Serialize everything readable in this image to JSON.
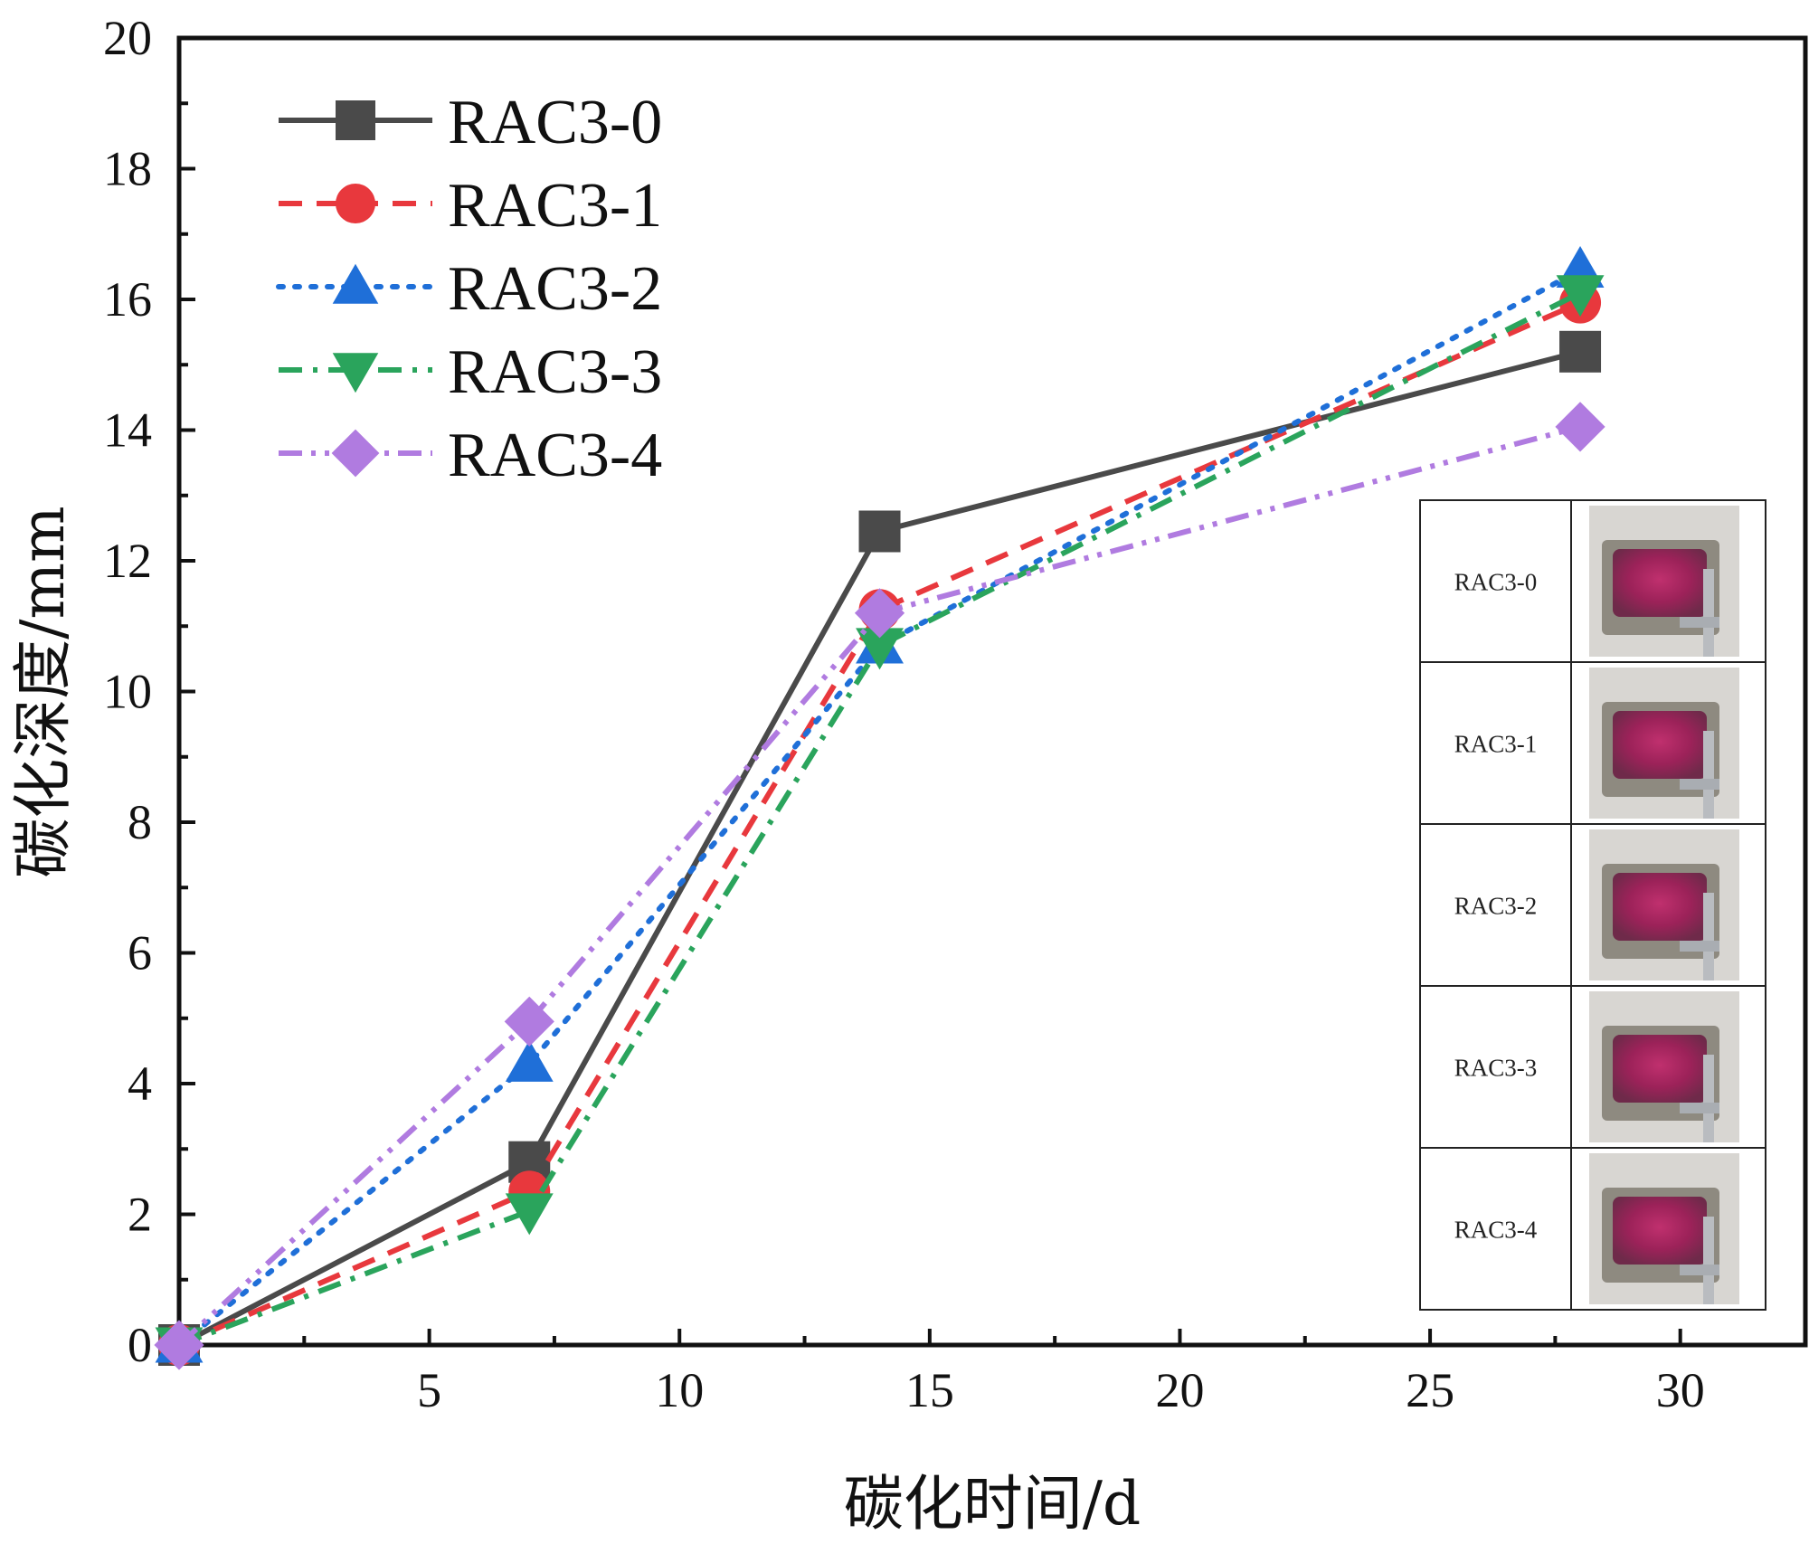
{
  "chart_data": {
    "type": "line",
    "xlabel": "碳化时间/d",
    "ylabel": "碳化深度/mm",
    "xlim": [
      0,
      32.5
    ],
    "ylim": [
      0,
      20
    ],
    "xticks": [
      5,
      10,
      15,
      20,
      25,
      30
    ],
    "yticks": [
      0,
      2,
      4,
      6,
      8,
      10,
      12,
      14,
      16,
      18,
      20
    ],
    "x": [
      0,
      7,
      14,
      28
    ],
    "series": [
      {
        "name": "RAC3-0",
        "values": [
          0,
          2.8,
          12.45,
          15.2
        ],
        "color": "#4a4a4a",
        "dash": "solid",
        "marker": "square"
      },
      {
        "name": "RAC3-1",
        "values": [
          0,
          2.35,
          11.25,
          15.95
        ],
        "color": "#e8383d",
        "dash": "dash",
        "marker": "circle"
      },
      {
        "name": "RAC3-2",
        "values": [
          0,
          4.3,
          10.7,
          16.45
        ],
        "color": "#1f6fd8",
        "dash": "dot",
        "marker": "triangle-up"
      },
      {
        "name": "RAC3-3",
        "values": [
          0,
          2.05,
          10.7,
          16.1
        ],
        "color": "#2aa45c",
        "dash": "dashdot",
        "marker": "triangle-down"
      },
      {
        "name": "RAC3-4",
        "values": [
          0,
          4.95,
          11.2,
          14.05
        ],
        "color": "#b07be0",
        "dash": "dashdotdot",
        "marker": "diamond"
      }
    ],
    "legend_position": "top-left",
    "inset": {
      "position": "bottom-right",
      "rows": [
        {
          "label": "RAC3-0",
          "photo": "specimen-photo"
        },
        {
          "label": "RAC3-1",
          "photo": "specimen-photo"
        },
        {
          "label": "RAC3-2",
          "photo": "specimen-photo"
        },
        {
          "label": "RAC3-3",
          "photo": "specimen-photo"
        },
        {
          "label": "RAC3-4",
          "photo": "specimen-photo"
        }
      ]
    }
  }
}
